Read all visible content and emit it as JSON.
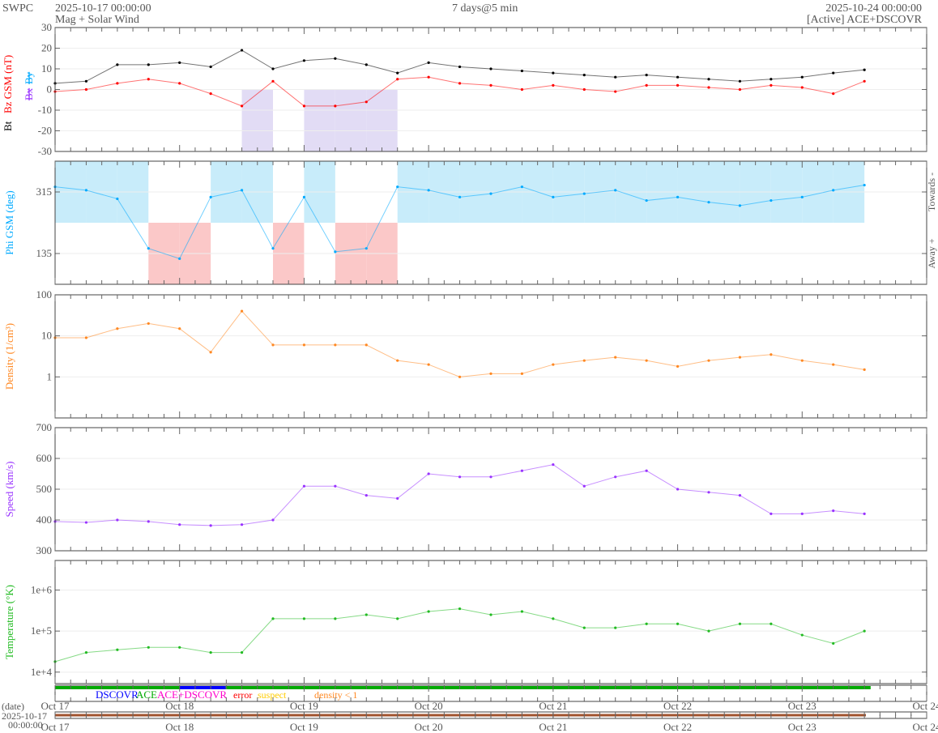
{
  "header": {
    "org": "SWPC",
    "start": "2025-10-17 00:00:00",
    "title": "Mag + Solar Wind",
    "span": "7 days@5 min",
    "end": "2025-10-24 00:00:00",
    "source": "[Active] ACE+DSCOVR"
  },
  "colors": {
    "bt": "#000000",
    "bz": "#ff0000",
    "bx": "#9933ff",
    "by": "#00aaff",
    "phi": "#00aaff",
    "towards": "#c8ecfa",
    "away": "#fbc8c8",
    "density": "#ff8822",
    "speed": "#9933ff",
    "temp": "#22bb22",
    "dscovr": "#0000ff",
    "ace": "#00aa00",
    "both": "#ff00cc",
    "error": "#ff0000",
    "suspect": "#ffcc00",
    "lowdens": "#ff8822"
  },
  "chart_data": {
    "type": "line",
    "x_unit": "days since 2025-10-17 00:00",
    "xlim": [
      0,
      7
    ],
    "x_ticks": [
      "Oct 17",
      "Oct 18",
      "Oct 19",
      "Oct 20",
      "Oct 21",
      "Oct 22",
      "Oct 23",
      "Oct 24"
    ],
    "x": [
      0,
      0.25,
      0.5,
      0.75,
      1,
      1.25,
      1.5,
      1.75,
      2,
      2.25,
      2.5,
      2.75,
      3,
      3.25,
      3.5,
      3.75,
      4,
      4.25,
      4.5,
      4.75,
      5,
      5.25,
      5.5,
      5.75,
      6,
      6.25,
      6.5
    ],
    "panels": [
      {
        "id": "mag",
        "ylabel_parts": [
          "Bt",
          "Bz GSM (nT)",
          "Bx",
          "By"
        ],
        "ylim": [
          -30,
          30
        ],
        "yscale": "linear",
        "y_ticks": [
          "30",
          "20",
          "10",
          "0",
          "-10",
          "-20",
          "-30"
        ],
        "series": [
          {
            "name": "Bt",
            "values": [
              3,
              4,
              12,
              12,
              13,
              11,
              19,
              10,
              14,
              15,
              12,
              8,
              13,
              11,
              10,
              9,
              8,
              7,
              6,
              7,
              6,
              5,
              4,
              5,
              6,
              8,
              9.5
            ]
          },
          {
            "name": "Bz",
            "values": [
              -1,
              0,
              3,
              5,
              3,
              -2,
              -8,
              4,
              -8,
              -8,
              -6,
              5,
              6,
              3,
              2,
              0,
              2,
              0,
              -1,
              2,
              2,
              1,
              0,
              2,
              1,
              -2,
              4
            ]
          }
        ]
      },
      {
        "id": "phi",
        "ylabel": "Phi GSM (deg)",
        "ylim": [
          45,
          405
        ],
        "yscale": "linear",
        "y_ticks": [
          "315",
          "135"
        ],
        "right_labels": [
          "Towards -",
          "Away +"
        ],
        "series": [
          {
            "name": "Phi",
            "values": [
              330,
              320,
              295,
              150,
              120,
              300,
              320,
              150,
              300,
              140,
              150,
              330,
              320,
              300,
              310,
              330,
              300,
              310,
              320,
              290,
              300,
              285,
              275,
              290,
              300,
              320,
              335
            ]
          }
        ]
      },
      {
        "id": "density",
        "ylabel": "Density (1/cm³)",
        "ylim": [
          0.1,
          100
        ],
        "yscale": "log",
        "y_ticks": [
          "100",
          "10",
          "1"
        ],
        "series": [
          {
            "name": "Density",
            "values": [
              9,
              9,
              15,
              20,
              15,
              4,
              40,
              6,
              6,
              6,
              6,
              2.5,
              2,
              1,
              1.2,
              1.2,
              2,
              2.5,
              3,
              2.5,
              1.8,
              2.5,
              3,
              3.5,
              2.5,
              2,
              1.5
            ]
          }
        ]
      },
      {
        "id": "speed",
        "ylabel": "Speed (km/s)",
        "ylim": [
          300,
          700
        ],
        "yscale": "linear",
        "y_ticks": [
          "700",
          "600",
          "500",
          "400",
          "300"
        ],
        "series": [
          {
            "name": "Speed",
            "values": [
              395,
              392,
              400,
              395,
              385,
              382,
              385,
              400,
              510,
              510,
              480,
              470,
              550,
              540,
              540,
              560,
              580,
              510,
              540,
              560,
              500,
              490,
              480,
              420,
              420,
              430,
              420
            ]
          }
        ]
      },
      {
        "id": "temp",
        "ylabel": "Temperature (°K)",
        "ylim": [
          5248,
          5248075
        ],
        "yscale": "log",
        "y_ticks": [
          "1e+6",
          "1e+5",
          "1e+4"
        ],
        "series": [
          {
            "name": "Temperature",
            "values": [
              18000,
              30000,
              35000,
              40000,
              40000,
              30000,
              30000,
              200000,
              200000,
              200000,
              250000,
              200000,
              300000,
              350000,
              250000,
              300000,
              200000,
              120000,
              120000,
              150000,
              150000,
              100000,
              150000,
              150000,
              80000,
              50000,
              100000
            ]
          }
        ]
      }
    ],
    "source_legend": [
      "DSCOVR",
      "ACE",
      "ACE+DSCOVR",
      "error",
      "suspect",
      "density < 1"
    ],
    "source_segments": [
      {
        "from": 0,
        "to": 1.0,
        "src": "ACE"
      },
      {
        "from": 1.0,
        "to": 1.37,
        "src": "DSCOVR"
      },
      {
        "from": 1.37,
        "to": 6.55,
        "src": "ACE"
      }
    ],
    "date_axis": {
      "label": "(date)",
      "start_date": "2025-10-17",
      "start_time": "00:00:00"
    }
  }
}
